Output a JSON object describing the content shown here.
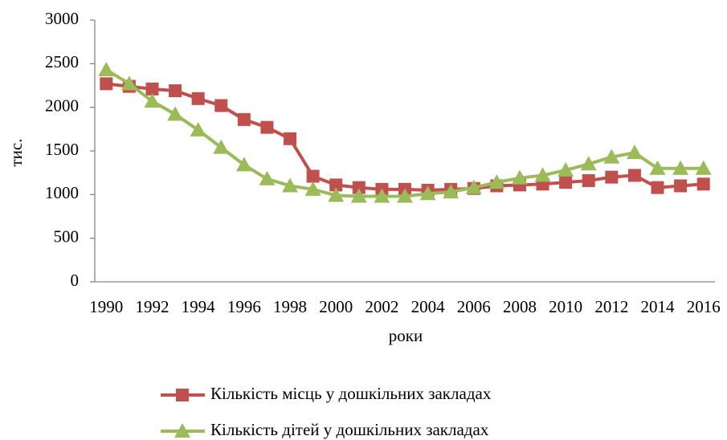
{
  "chart_data": {
    "type": "line",
    "x": [
      1990,
      1991,
      1992,
      1993,
      1994,
      1995,
      1996,
      1997,
      1998,
      1999,
      2000,
      2001,
      2002,
      2003,
      2004,
      2005,
      2006,
      2007,
      2008,
      2009,
      2010,
      2011,
      2012,
      2013,
      2014,
      2015,
      2016
    ],
    "xlim": [
      1989.5,
      2016.5
    ],
    "xticks": [
      1990,
      1992,
      1994,
      1996,
      1998,
      2000,
      2002,
      2004,
      2006,
      2008,
      2010,
      2012,
      2014,
      2016
    ],
    "ylim": [
      0,
      3000
    ],
    "yticks": [
      0,
      500,
      1000,
      1500,
      2000,
      2500,
      3000
    ],
    "xlabel": "роки",
    "ylabel": "тис.",
    "grid": false,
    "legend": "bottom",
    "series": [
      {
        "name": "Кількість місць у дошкільних закладах",
        "color": "#c0504d",
        "marker": "square",
        "values": [
          2270,
          2240,
          2210,
          2190,
          2100,
          2020,
          1860,
          1770,
          1640,
          1210,
          1110,
          1080,
          1060,
          1060,
          1050,
          1060,
          1070,
          1100,
          1110,
          1120,
          1140,
          1160,
          1200,
          1220,
          1080,
          1100,
          1120
        ]
      },
      {
        "name": "Кількість дітей у дошкільних  закладах",
        "color": "#9bbb59",
        "marker": "triangle",
        "values": [
          2430,
          2270,
          2070,
          1920,
          1740,
          1540,
          1340,
          1180,
          1100,
          1060,
          990,
          980,
          980,
          980,
          1010,
          1030,
          1080,
          1140,
          1190,
          1220,
          1280,
          1350,
          1430,
          1480,
          1300,
          1300,
          1300
        ]
      }
    ]
  }
}
